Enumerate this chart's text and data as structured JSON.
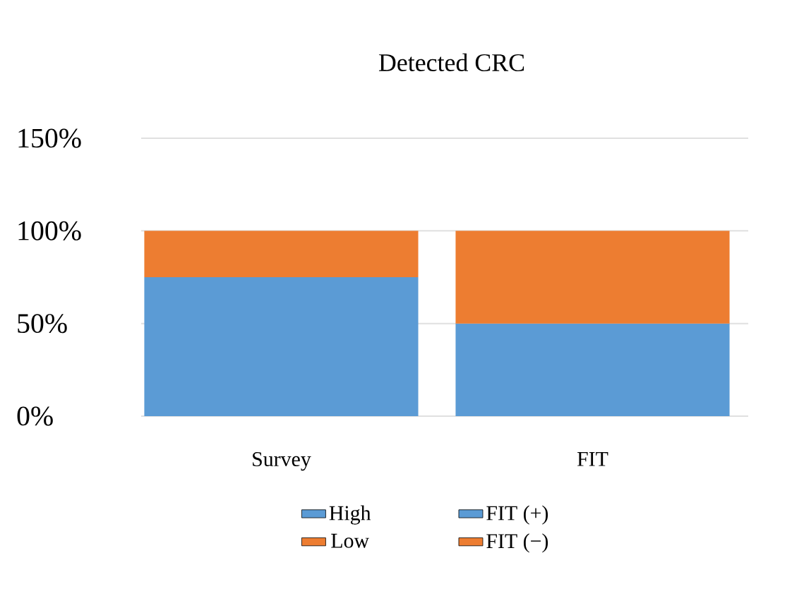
{
  "chart_data": {
    "type": "bar",
    "title": "Detected CRC",
    "stacked": true,
    "categories": [
      "Survey",
      "FIT"
    ],
    "series": [
      {
        "name": "High",
        "color": "#5b9bd5",
        "values": [
          75,
          null
        ]
      },
      {
        "name": "Low",
        "color": "#ed7d31",
        "values": [
          25,
          null
        ]
      },
      {
        "name": "FIT (+)",
        "color": "#5b9bd5",
        "values": [
          null,
          50
        ]
      },
      {
        "name": "FIT (−)",
        "color": "#ed7d31",
        "values": [
          null,
          50
        ]
      }
    ],
    "ylim": [
      0,
      150
    ],
    "yticks": [
      {
        "value": 0,
        "label": "0%"
      },
      {
        "value": 50,
        "label": "50%"
      },
      {
        "value": 100,
        "label": "100%"
      },
      {
        "value": 150,
        "label": "150%"
      }
    ],
    "grid": "y",
    "legend": "bottom"
  }
}
